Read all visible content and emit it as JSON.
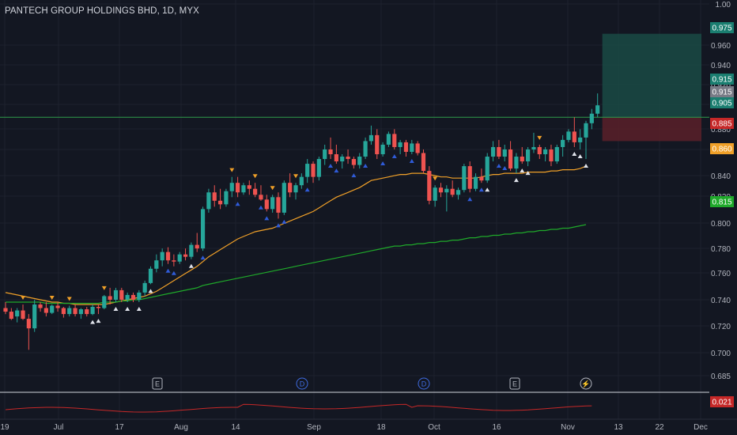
{
  "symbol": {
    "title": "PANTECH GROUP HOLDINGS BHD, 1D, MYX"
  },
  "colors": {
    "background": "#131722",
    "grid": "#1e222d",
    "up": "#26a69a",
    "down": "#ef5350",
    "ma_fast": "#f0a028",
    "ma_slow": "#1fa92a",
    "buy_marker": "#e0e3eb",
    "bull_marker": "#2f5bd8",
    "bear_marker": "#f0a028",
    "oscillator": "#c62828",
    "horizontal_line": "#2e9c4a",
    "target_zone": "#1a4a44",
    "stop_zone": "#5a2029"
  },
  "price_axis": {
    "ticks": [
      "1.00",
      "0.960",
      "0.940",
      "0.920",
      "0.900",
      "0.880",
      "0.860",
      "0.840",
      "0.820",
      "0.800",
      "0.780",
      "0.760",
      "0.740",
      "0.720",
      "0.700",
      "0.685"
    ]
  },
  "time_axis": {
    "labels": [
      "19",
      "Jul",
      "17",
      "Aug",
      "14",
      "Sep",
      "18",
      "Oct",
      "16",
      "Nov",
      "13",
      "22",
      "Dec"
    ]
  },
  "price_badges": [
    {
      "label": "0.975",
      "color": "#1a7e70"
    },
    {
      "label": "0.915",
      "color": "#1a7e70"
    },
    {
      "label": "0.915",
      "color": "#787b86"
    },
    {
      "label": "0.905",
      "color": "#1a7e70"
    },
    {
      "label": "0.885",
      "color": "#c62828"
    },
    {
      "label": "0.860",
      "color": "#f0a028"
    },
    {
      "label": "0.815",
      "color": "#1fa92a"
    }
  ],
  "oscillator": {
    "value_label": "0.021"
  },
  "event_markers": [
    {
      "label": "E",
      "type": "earnings"
    },
    {
      "label": "D",
      "type": "dividend"
    },
    {
      "label": "D",
      "type": "dividend"
    },
    {
      "label": "E",
      "type": "earnings"
    },
    {
      "label": "⚡",
      "type": "split"
    }
  ],
  "chart_data": {
    "type": "candlestick",
    "title": "PANTECH GROUP HOLDINGS BHD, 1D, MYX",
    "ylim": [
      0.685,
      1.0
    ],
    "last_close": 0.915,
    "horizontal_line": 0.905,
    "position_tool": {
      "entry": 0.905,
      "target": 0.975,
      "stop": 0.885
    },
    "ohlc": [
      [
        0.745,
        0.75,
        0.74,
        0.742
      ],
      [
        0.742,
        0.745,
        0.735,
        0.736
      ],
      [
        0.738,
        0.745,
        0.733,
        0.743
      ],
      [
        0.743,
        0.748,
        0.735,
        0.736
      ],
      [
        0.736,
        0.74,
        0.71,
        0.728
      ],
      [
        0.728,
        0.752,
        0.725,
        0.748
      ],
      [
        0.748,
        0.75,
        0.742,
        0.745
      ],
      [
        0.745,
        0.75,
        0.738,
        0.741
      ],
      [
        0.741,
        0.748,
        0.74,
        0.747
      ],
      [
        0.747,
        0.75,
        0.742,
        0.745
      ],
      [
        0.745,
        0.746,
        0.737,
        0.74
      ],
      [
        0.74,
        0.747,
        0.738,
        0.745
      ],
      [
        0.745,
        0.748,
        0.738,
        0.74
      ],
      [
        0.74,
        0.745,
        0.736,
        0.744
      ],
      [
        0.744,
        0.746,
        0.738,
        0.74
      ],
      [
        0.74,
        0.748,
        0.739,
        0.746
      ],
      [
        0.746,
        0.748,
        0.74,
        0.745
      ],
      [
        0.745,
        0.756,
        0.744,
        0.755
      ],
      [
        0.755,
        0.762,
        0.748,
        0.752
      ],
      [
        0.752,
        0.762,
        0.75,
        0.76
      ],
      [
        0.76,
        0.762,
        0.75,
        0.752
      ],
      [
        0.752,
        0.758,
        0.75,
        0.756
      ],
      [
        0.756,
        0.758,
        0.75,
        0.752
      ],
      [
        0.752,
        0.76,
        0.75,
        0.758
      ],
      [
        0.758,
        0.768,
        0.755,
        0.766
      ],
      [
        0.766,
        0.78,
        0.765,
        0.778
      ],
      [
        0.778,
        0.79,
        0.775,
        0.785
      ],
      [
        0.785,
        0.795,
        0.78,
        0.792
      ],
      [
        0.792,
        0.796,
        0.782,
        0.785
      ],
      [
        0.785,
        0.79,
        0.78,
        0.784
      ],
      [
        0.784,
        0.792,
        0.782,
        0.79
      ],
      [
        0.79,
        0.795,
        0.785,
        0.788
      ],
      [
        0.788,
        0.8,
        0.786,
        0.798
      ],
      [
        0.798,
        0.808,
        0.792,
        0.795
      ],
      [
        0.795,
        0.83,
        0.793,
        0.828
      ],
      [
        0.828,
        0.845,
        0.825,
        0.842
      ],
      [
        0.842,
        0.848,
        0.83,
        0.835
      ],
      [
        0.835,
        0.845,
        0.828,
        0.832
      ],
      [
        0.832,
        0.845,
        0.83,
        0.843
      ],
      [
        0.843,
        0.855,
        0.838,
        0.85
      ],
      [
        0.85,
        0.855,
        0.838,
        0.842
      ],
      [
        0.842,
        0.85,
        0.84,
        0.848
      ],
      [
        0.848,
        0.852,
        0.84,
        0.845
      ],
      [
        0.845,
        0.85,
        0.838,
        0.84
      ],
      [
        0.84,
        0.848,
        0.835,
        0.836
      ],
      [
        0.836,
        0.84,
        0.826,
        0.828
      ],
      [
        0.828,
        0.84,
        0.825,
        0.838
      ],
      [
        0.838,
        0.842,
        0.82,
        0.825
      ],
      [
        0.825,
        0.852,
        0.823,
        0.85
      ],
      [
        0.85,
        0.858,
        0.838,
        0.842
      ],
      [
        0.842,
        0.85,
        0.836,
        0.848
      ],
      [
        0.848,
        0.858,
        0.845,
        0.855
      ],
      [
        0.855,
        0.87,
        0.85,
        0.866
      ],
      [
        0.866,
        0.868,
        0.85,
        0.855
      ],
      [
        0.855,
        0.872,
        0.852,
        0.87
      ],
      [
        0.87,
        0.882,
        0.865,
        0.878
      ],
      [
        0.878,
        0.888,
        0.87,
        0.874
      ],
      [
        0.874,
        0.882,
        0.866,
        0.868
      ],
      [
        0.868,
        0.874,
        0.862,
        0.872
      ],
      [
        0.872,
        0.878,
        0.866,
        0.87
      ],
      [
        0.87,
        0.872,
        0.862,
        0.865
      ],
      [
        0.865,
        0.875,
        0.862,
        0.872
      ],
      [
        0.872,
        0.888,
        0.87,
        0.885
      ],
      [
        0.885,
        0.898,
        0.882,
        0.89
      ],
      [
        0.89,
        0.895,
        0.87,
        0.874
      ],
      [
        0.874,
        0.884,
        0.872,
        0.882
      ],
      [
        0.882,
        0.893,
        0.88,
        0.891
      ],
      [
        0.891,
        0.895,
        0.878,
        0.88
      ],
      [
        0.88,
        0.886,
        0.874,
        0.884
      ],
      [
        0.884,
        0.886,
        0.872,
        0.876
      ],
      [
        0.876,
        0.886,
        0.874,
        0.883
      ],
      [
        0.883,
        0.885,
        0.873,
        0.875
      ],
      [
        0.875,
        0.878,
        0.858,
        0.86
      ],
      [
        0.86,
        0.864,
        0.832,
        0.835
      ],
      [
        0.835,
        0.848,
        0.83,
        0.846
      ],
      [
        0.846,
        0.85,
        0.838,
        0.842
      ],
      [
        0.842,
        0.848,
        0.826,
        0.845
      ],
      [
        0.845,
        0.852,
        0.838,
        0.84
      ],
      [
        0.84,
        0.846,
        0.836,
        0.844
      ],
      [
        0.844,
        0.866,
        0.842,
        0.864
      ],
      [
        0.864,
        0.868,
        0.842,
        0.845
      ],
      [
        0.845,
        0.858,
        0.843,
        0.855
      ],
      [
        0.855,
        0.862,
        0.85,
        0.852
      ],
      [
        0.852,
        0.875,
        0.85,
        0.872
      ],
      [
        0.872,
        0.885,
        0.868,
        0.88
      ],
      [
        0.88,
        0.886,
        0.87,
        0.872
      ],
      [
        0.872,
        0.882,
        0.868,
        0.878
      ],
      [
        0.878,
        0.885,
        0.86,
        0.862
      ],
      [
        0.862,
        0.875,
        0.858,
        0.872
      ],
      [
        0.872,
        0.88,
        0.866,
        0.868
      ],
      [
        0.868,
        0.88,
        0.864,
        0.878
      ],
      [
        0.878,
        0.892,
        0.875,
        0.88
      ],
      [
        0.88,
        0.882,
        0.87,
        0.874
      ],
      [
        0.874,
        0.88,
        0.868,
        0.878
      ],
      [
        0.878,
        0.882,
        0.864,
        0.868
      ],
      [
        0.868,
        0.882,
        0.866,
        0.88
      ],
      [
        0.88,
        0.89,
        0.872,
        0.886
      ],
      [
        0.886,
        0.895,
        0.884,
        0.893
      ],
      [
        0.893,
        0.905,
        0.88,
        0.884
      ],
      [
        0.884,
        0.895,
        0.878,
        0.888
      ],
      [
        0.888,
        0.902,
        0.87,
        0.9
      ],
      [
        0.9,
        0.912,
        0.895,
        0.908
      ],
      [
        0.908,
        0.925,
        0.905,
        0.915
      ]
    ],
    "series": [
      {
        "values": [
          0.758,
          0.757,
          0.756,
          0.755,
          0.754,
          0.753,
          0.752,
          0.751,
          0.75,
          0.75,
          0.749,
          0.749,
          0.748,
          0.748,
          0.748,
          0.748,
          0.748,
          0.748,
          0.749,
          0.75,
          0.751,
          0.752,
          0.753,
          0.754,
          0.755,
          0.757,
          0.759,
          0.762,
          0.765,
          0.768,
          0.771,
          0.774,
          0.777,
          0.78,
          0.784,
          0.788,
          0.791,
          0.794,
          0.797,
          0.8,
          0.803,
          0.805,
          0.807,
          0.809,
          0.81,
          0.811,
          0.812,
          0.814,
          0.816,
          0.818,
          0.82,
          0.822,
          0.824,
          0.826,
          0.829,
          0.832,
          0.835,
          0.838,
          0.84,
          0.842,
          0.844,
          0.846,
          0.849,
          0.852,
          0.853,
          0.854,
          0.855,
          0.856,
          0.857,
          0.857,
          0.858,
          0.858,
          0.858,
          0.857,
          0.856,
          0.855,
          0.855,
          0.854,
          0.854,
          0.854,
          0.854,
          0.854,
          0.855,
          0.856,
          0.857,
          0.857,
          0.858,
          0.858,
          0.858,
          0.858,
          0.859,
          0.859,
          0.859,
          0.859,
          0.86,
          0.86,
          0.861,
          0.861,
          0.861,
          0.862,
          0.864
        ]
      },
      {
        "values": [
          0.75,
          0.75,
          0.75,
          0.75,
          0.75,
          0.75,
          0.75,
          0.749,
          0.749,
          0.749,
          0.749,
          0.749,
          0.749,
          0.749,
          0.749,
          0.749,
          0.749,
          0.75,
          0.75,
          0.75,
          0.751,
          0.751,
          0.752,
          0.752,
          0.753,
          0.754,
          0.755,
          0.756,
          0.757,
          0.758,
          0.759,
          0.76,
          0.761,
          0.762,
          0.764,
          0.765,
          0.766,
          0.767,
          0.768,
          0.769,
          0.77,
          0.771,
          0.772,
          0.773,
          0.774,
          0.775,
          0.776,
          0.777,
          0.778,
          0.779,
          0.78,
          0.781,
          0.782,
          0.783,
          0.784,
          0.785,
          0.786,
          0.787,
          0.788,
          0.789,
          0.79,
          0.791,
          0.792,
          0.793,
          0.794,
          0.795,
          0.796,
          0.797,
          0.797,
          0.798,
          0.798,
          0.799,
          0.799,
          0.8,
          0.8,
          0.801,
          0.801,
          0.802,
          0.802,
          0.803,
          0.804,
          0.804,
          0.805,
          0.805,
          0.806,
          0.806,
          0.807,
          0.807,
          0.808,
          0.808,
          0.809,
          0.809,
          0.81,
          0.81,
          0.811,
          0.811,
          0.812,
          0.812,
          0.813,
          0.814,
          0.815
        ]
      }
    ],
    "markers": [
      {
        "bar": 3,
        "type": "bear"
      },
      {
        "bar": 8,
        "type": "bear"
      },
      {
        "bar": 11,
        "type": "bear"
      },
      {
        "bar": 15,
        "type": "buy"
      },
      {
        "bar": 16,
        "type": "buy"
      },
      {
        "bar": 17,
        "type": "bear"
      },
      {
        "bar": 19,
        "type": "buy"
      },
      {
        "bar": 21,
        "type": "buy"
      },
      {
        "bar": 23,
        "type": "buy"
      },
      {
        "bar": 25,
        "type": "buy"
      },
      {
        "bar": 28,
        "type": "bull"
      },
      {
        "bar": 29,
        "type": "bull"
      },
      {
        "bar": 32,
        "type": "buy"
      },
      {
        "bar": 34,
        "type": "bull"
      },
      {
        "bar": 39,
        "type": "bear"
      },
      {
        "bar": 40,
        "type": "bull"
      },
      {
        "bar": 43,
        "type": "bear"
      },
      {
        "bar": 44,
        "type": "bull"
      },
      {
        "bar": 45,
        "type": "bull"
      },
      {
        "bar": 46,
        "type": "bear"
      },
      {
        "bar": 47,
        "type": "bull"
      },
      {
        "bar": 48,
        "type": "bull"
      },
      {
        "bar": 50,
        "type": "bear"
      },
      {
        "bar": 52,
        "type": "bull"
      },
      {
        "bar": 56,
        "type": "bull"
      },
      {
        "bar": 57,
        "type": "bull"
      },
      {
        "bar": 60,
        "type": "bull"
      },
      {
        "bar": 62,
        "type": "bull"
      },
      {
        "bar": 65,
        "type": "bull"
      },
      {
        "bar": 67,
        "type": "bull"
      },
      {
        "bar": 70,
        "type": "bull"
      },
      {
        "bar": 74,
        "type": "bear"
      },
      {
        "bar": 80,
        "type": "bull"
      },
      {
        "bar": 82,
        "type": "bull"
      },
      {
        "bar": 83,
        "type": "buy"
      },
      {
        "bar": 85,
        "type": "bull"
      },
      {
        "bar": 86,
        "type": "bull"
      },
      {
        "bar": 88,
        "type": "buy"
      },
      {
        "bar": 89,
        "type": "buy"
      },
      {
        "bar": 90,
        "type": "buy"
      },
      {
        "bar": 92,
        "type": "bear"
      },
      {
        "bar": 98,
        "type": "buy"
      },
      {
        "bar": 99,
        "type": "buy"
      },
      {
        "bar": 100,
        "type": "buy"
      }
    ]
  }
}
